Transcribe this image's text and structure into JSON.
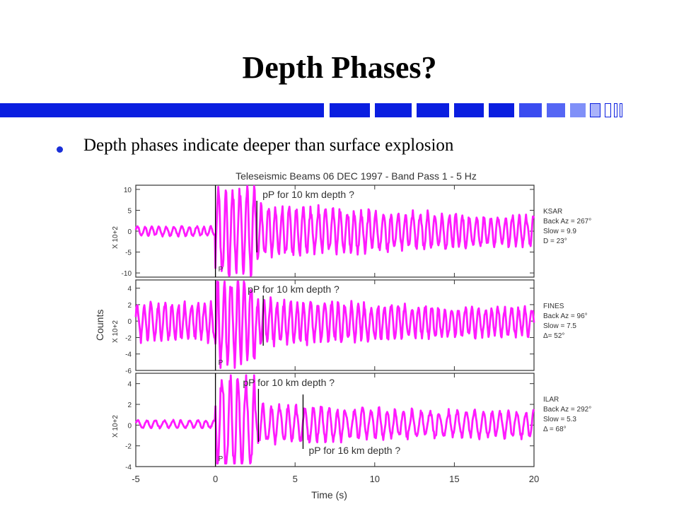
{
  "slide": {
    "title": "Depth Phases?",
    "bullet": "Depth phases indicate deeper than surface explosion",
    "accent_color": "#0a1ee0"
  },
  "chart_data": {
    "type": "line",
    "title": "Teleseismic Beams 06 DEC 1997 - Band Pass 1 - 5 Hz",
    "xlabel": "Time (s)",
    "ylabel": "Counts",
    "xlim": [
      -5,
      20
    ],
    "x_ticks": [
      -5,
      0,
      5,
      10,
      15,
      20
    ],
    "series_color": "#ff1aff",
    "panels": [
      {
        "station": "KSAR",
        "info": [
          "KSAR",
          "Back Az = 267°",
          "Slow = 9.9",
          "D = 23°"
        ],
        "ylim": [
          -11,
          11
        ],
        "y_ticks": [
          10,
          5,
          0,
          -5,
          -10
        ],
        "y_scale_label": "X 10+2",
        "p_time": 0,
        "p_label": "P",
        "depth_markers": [
          {
            "t": 2.6,
            "label": "pP for 10 km depth ?"
          }
        ]
      },
      {
        "station": "FINES",
        "info": [
          "FINES",
          "Back Az = 96°",
          "Slow = 7.5",
          "Δ= 52°"
        ],
        "ylim": [
          -6,
          5
        ],
        "y_ticks": [
          4,
          2,
          0,
          -2,
          -4,
          -6
        ],
        "y_scale_label": "X 10+2",
        "p_time": 0,
        "p_label": "P",
        "depth_markers": [
          {
            "t": 3.0,
            "label": "pP for 10 km depth ?"
          }
        ]
      },
      {
        "station": "ILAR",
        "info": [
          "ILAR",
          "Back Az = 292°",
          "Slow = 5.3",
          "Δ = 68°"
        ],
        "ylim": [
          -4,
          5
        ],
        "y_ticks": [
          4,
          2,
          0,
          -2,
          -4
        ],
        "y_scale_label": "X 10+2",
        "p_time": 0,
        "p_label": "P",
        "depth_markers": [
          {
            "t": 2.7,
            "label": "pP for 10 km depth ?"
          },
          {
            "t": 5.5,
            "label": "pP for 16 km depth ?"
          }
        ]
      }
    ]
  }
}
